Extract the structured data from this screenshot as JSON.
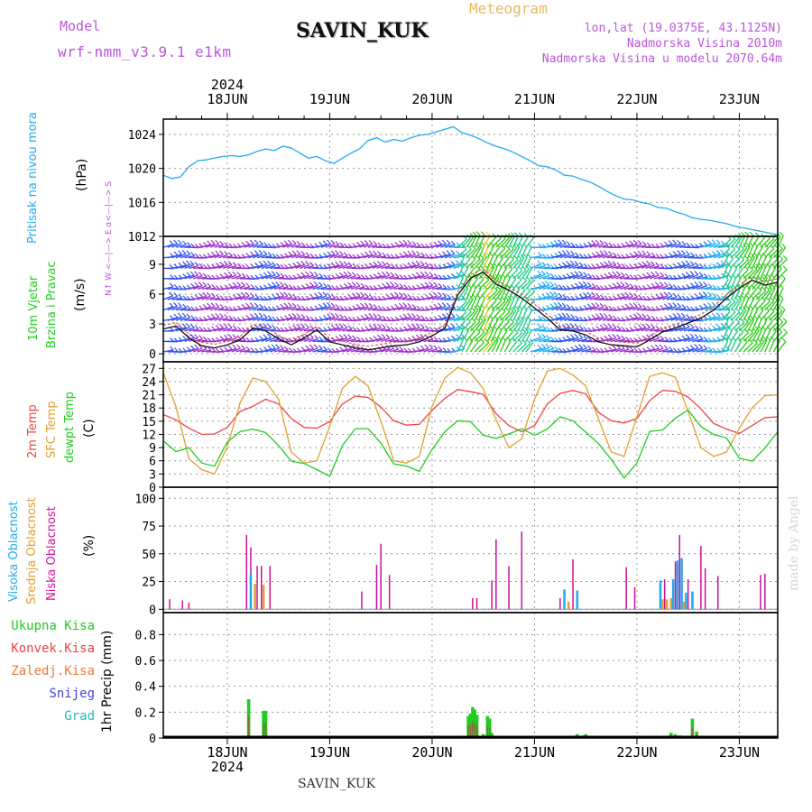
{
  "header": {
    "model_label": "Model",
    "model_name": "wrf-nmm_v3.9.1  e1km",
    "station": "SAVIN_KUK",
    "meteogram": "Meteogram",
    "lonlat": "lon,lat (19.0375E, 43.1125N)",
    "elevation": "Nadmorska Visina 2010m",
    "elevation_model": "Nadmorska Visina u modelu 2070.64m",
    "footer_station": "SAVIN_KUK",
    "watermark": "made by Angel"
  },
  "colors": {
    "pressure": "#22aaee",
    "temp2m": "#ee4444",
    "sfc_temp": "#e0a030",
    "dewpt": "#22cc22",
    "visoka": "#22aaee",
    "srednja": "#e0a030",
    "niska": "#cc1199",
    "ukupna": "#22cc22",
    "konvek": "#ee4444",
    "zaledj": "#ee7733",
    "snijeg": "#4444dd",
    "grad": "#22bbbb",
    "wind_label": "#22cc22",
    "model_text": "#bb55dd"
  },
  "chart_data": [
    {
      "type": "line",
      "panel": "pressure",
      "ylabel": "Pritisak na nivou mora",
      "unit": "(hPa)",
      "ylim": [
        1012,
        1025.8
      ],
      "yticks": [
        "1012",
        "1016",
        "1020",
        "1024"
      ],
      "x": [
        0,
        2,
        4,
        6,
        8,
        10,
        12,
        14,
        16,
        18,
        20,
        22,
        24,
        26,
        28,
        30,
        32,
        34,
        36,
        38,
        40,
        42,
        44,
        46,
        48,
        50,
        52,
        54,
        56,
        58,
        60,
        62,
        64,
        66,
        68,
        70,
        72,
        74,
        76,
        78,
        80,
        82,
        84,
        86,
        88,
        90,
        92,
        94,
        96,
        98,
        100,
        102,
        104,
        106,
        108,
        110,
        112,
        114,
        116,
        118,
        120,
        122,
        124,
        126,
        128,
        130,
        132,
        134,
        136,
        138,
        140,
        142,
        144
      ],
      "series": [
        {
          "name": "",
          "values": [
            1019.2,
            1018.8,
            1019.0,
            1020.2,
            1020.9,
            1021.0,
            1021.2,
            1021.4,
            1021.5,
            1021.4,
            1021.6,
            1022.0,
            1022.3,
            1022.1,
            1022.6,
            1022.4,
            1021.8,
            1021.2,
            1021.4,
            1020.9,
            1020.6,
            1021.2,
            1021.8,
            1022.3,
            1023.3,
            1023.6,
            1023.1,
            1023.4,
            1023.2,
            1023.6,
            1023.9,
            1024.0,
            1024.3,
            1024.6,
            1024.9,
            1024.2,
            1023.9,
            1023.5,
            1023.0,
            1022.6,
            1022.3,
            1021.9,
            1021.4,
            1020.9,
            1020.3,
            1020.2,
            1019.8,
            1019.2,
            1019.1,
            1018.7,
            1018.4,
            1017.9,
            1017.3,
            1016.8,
            1016.4,
            1016.3,
            1016.0,
            1015.8,
            1015.4,
            1015.3,
            1014.9,
            1014.6,
            1014.2,
            1014.0,
            1013.9,
            1013.7,
            1013.5,
            1013.2,
            1013.0,
            1012.8,
            1012.6,
            1012.4,
            1012.2
          ]
        }
      ]
    },
    {
      "type": "line",
      "panel": "wind",
      "ylabel_lines": [
        "10m Vjetar",
        "Brzina i Pravac"
      ],
      "unit": "(m/s)",
      "compass": "N↑ W <—|—> E α<—|—> S",
      "ylim": [
        -0.8,
        11.8
      ],
      "yticks": [
        "0",
        "3",
        "6",
        "9"
      ],
      "x": [
        0,
        3,
        6,
        9,
        12,
        15,
        18,
        21,
        24,
        27,
        30,
        33,
        36,
        39,
        42,
        45,
        48,
        51,
        54,
        57,
        60,
        63,
        66,
        69,
        72,
        75,
        78,
        81,
        84,
        87,
        90,
        93,
        96,
        99,
        102,
        105,
        108,
        111,
        114,
        117,
        120,
        123,
        126,
        129,
        132,
        135,
        138,
        141,
        144
      ],
      "series": [
        {
          "name": "",
          "values": [
            2.5,
            2.8,
            1.6,
            0.8,
            0.6,
            0.9,
            1.4,
            2.6,
            2.3,
            1.5,
            0.9,
            1.6,
            2.4,
            1.2,
            0.9,
            0.6,
            0.4,
            0.6,
            0.8,
            0.9,
            1.2,
            1.8,
            2.6,
            5.9,
            7.6,
            8.2,
            7.0,
            6.4,
            5.6,
            4.6,
            3.6,
            2.4,
            2.3,
            1.9,
            1.2,
            0.9,
            0.8,
            0.7,
            1.4,
            2.2,
            2.6,
            3.1,
            3.6,
            4.4,
            5.6,
            6.6,
            7.4,
            6.9,
            7.2
          ]
        }
      ]
    },
    {
      "type": "line",
      "panel": "temperature",
      "labels": [
        "2m Temp",
        "SFC Temp",
        "dewpt Temp"
      ],
      "unit": "(C)",
      "ylim": [
        0,
        28.5
      ],
      "yticks": [
        "0",
        "3",
        "6",
        "9",
        "12",
        "15",
        "18",
        "21",
        "24",
        "27"
      ],
      "x": [
        0,
        3,
        6,
        9,
        12,
        15,
        18,
        21,
        24,
        27,
        30,
        33,
        36,
        39,
        42,
        45,
        48,
        51,
        54,
        57,
        60,
        63,
        66,
        69,
        72,
        75,
        78,
        81,
        84,
        87,
        90,
        93,
        96,
        99,
        102,
        105,
        108,
        111,
        114,
        117,
        120,
        123,
        126,
        129,
        132,
        135,
        138,
        141,
        144
      ],
      "series": [
        {
          "name": "2m Temp",
          "values": [
            16.5,
            15.3,
            13.4,
            12.0,
            12.1,
            13.6,
            17.2,
            18.4,
            20.0,
            18.9,
            15.6,
            13.6,
            13.4,
            14.9,
            18.9,
            20.7,
            20.4,
            18.2,
            15.1,
            14.1,
            14.3,
            17.5,
            20.2,
            22.2,
            21.7,
            21.1,
            16.7,
            14.0,
            12.6,
            14.0,
            18.9,
            21.3,
            22.0,
            21.2,
            17.0,
            15.1,
            14.6,
            15.6,
            19.7,
            22.0,
            21.8,
            20.5,
            17.8,
            14.5,
            13.2,
            12.2,
            14.0,
            15.8,
            16.0
          ]
        },
        {
          "name": "SFC Temp",
          "values": [
            26.0,
            18.2,
            6.5,
            4.0,
            3.0,
            9.2,
            19.2,
            24.8,
            24.0,
            20.0,
            8.0,
            5.5,
            6.0,
            13.8,
            22.5,
            25.2,
            23.0,
            15.0,
            6.0,
            5.5,
            7.0,
            18.4,
            24.8,
            27.2,
            26.0,
            22.4,
            15.3,
            9.0,
            11.0,
            20.0,
            26.4,
            27.0,
            25.5,
            23.0,
            15.5,
            8.0,
            7.0,
            16.0,
            25.2,
            26.0,
            25.0,
            17.2,
            9.0,
            7.0,
            8.0,
            13.4,
            18.0,
            20.8,
            21.0
          ]
        },
        {
          "name": "dewpt Temp",
          "values": [
            10.5,
            8.1,
            9.0,
            5.5,
            4.8,
            10.3,
            12.6,
            13.2,
            12.4,
            9.5,
            5.9,
            5.4,
            4.0,
            2.5,
            9.5,
            13.3,
            13.3,
            10.0,
            5.3,
            4.8,
            3.6,
            8.6,
            12.6,
            15.1,
            14.9,
            11.8,
            11.1,
            12.1,
            13.3,
            11.8,
            13.2,
            16.0,
            15.1,
            12.5,
            9.9,
            6.3,
            2.1,
            5.5,
            12.7,
            13.0,
            15.7,
            17.5,
            13.8,
            12.0,
            11.2,
            6.6,
            5.9,
            8.9,
            12.6
          ]
        }
      ]
    },
    {
      "type": "bar",
      "panel": "cloud",
      "labels": [
        "Visoka Oblacnost",
        "Srednja Oblacnost",
        "Niska Oblacnost"
      ],
      "unit": "(%)",
      "ylim": [
        -3,
        110
      ],
      "yticks": [
        "0",
        "25",
        "50",
        "75",
        "100"
      ],
      "series": [
        {
          "name": "Niska Oblacnost",
          "x": [
            1.5,
            4.5,
            6,
            19.5,
            20.5,
            22,
            23,
            25,
            46.5,
            50,
            51,
            53,
            72.5,
            73.5,
            77,
            78,
            81,
            84,
            93,
            96,
            108.5,
            110.5,
            117.5,
            120,
            121,
            123,
            126,
            127,
            130,
            140,
            141
          ],
          "values": [
            9,
            8,
            6,
            67,
            56,
            39,
            39,
            39,
            16,
            40,
            59,
            31,
            10,
            10,
            26,
            63,
            39,
            70,
            10,
            45,
            38,
            20,
            27,
            43,
            67,
            27,
            57,
            37,
            30,
            31,
            32
          ]
        },
        {
          "name": "Visoka Oblacnost",
          "x": [
            20.5,
            94,
            97,
            116.5,
            119.5,
            120.5,
            121.5,
            122.5,
            124
          ],
          "values": [
            32,
            18,
            17,
            26,
            27,
            44,
            46,
            15,
            16
          ]
        },
        {
          "name": "Srednja Oblacnost",
          "x": [
            21.5,
            23.5,
            95,
            117,
            118,
            119,
            122
          ],
          "values": [
            23,
            22,
            7,
            9,
            9,
            10,
            7
          ]
        }
      ]
    },
    {
      "type": "bar",
      "panel": "precip",
      "labels": [
        "Ukupna Kisa",
        "Konvek.Kisa",
        "Zaledj.Kisa",
        "Snijeg",
        "Grad"
      ],
      "ylabel": "1hr Precip (mm)",
      "ylim": [
        0,
        0.97
      ],
      "yticks": [
        "0",
        "0.2",
        "0.4",
        "0.6",
        "0.8"
      ],
      "series": [
        {
          "name": "Ukupna Kisa",
          "x": [
            20,
            23.5,
            24,
            71.5,
            72,
            72.5,
            73,
            73.5,
            75,
            76,
            76.5,
            77,
            97,
            98.5,
            99,
            102,
            119,
            120,
            121,
            124,
            125
          ],
          "values": [
            0.3,
            0.21,
            0.21,
            0.17,
            0.19,
            0.24,
            0.22,
            0.18,
            0.03,
            0.17,
            0.15,
            0.04,
            0.03,
            0.02,
            0.03,
            0.01,
            0.04,
            0.03,
            0.02,
            0.15,
            0.05
          ]
        }
      ]
    }
  ],
  "xaxis": {
    "days": [
      "18JUN",
      "19JUN",
      "20JUN",
      "21JUN",
      "22JUN",
      "23JUN"
    ],
    "year": "2024"
  }
}
